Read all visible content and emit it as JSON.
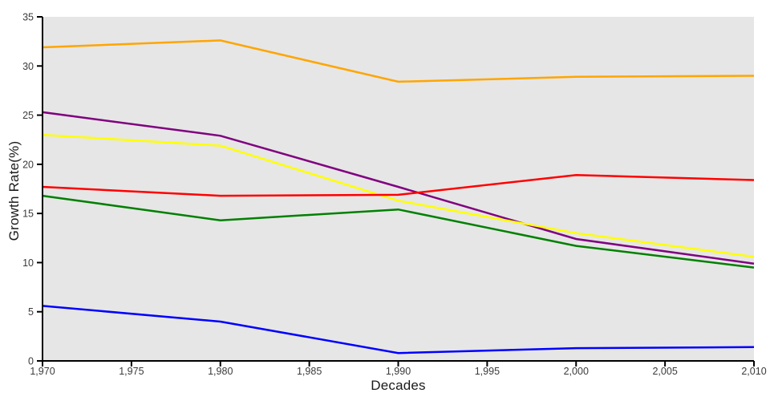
{
  "chart_data": {
    "type": "line",
    "title": "",
    "xlabel": "Decades",
    "ylabel": "Growth Rate(%)",
    "x": [
      1970,
      1980,
      1990,
      2000,
      2010
    ],
    "series": [
      {
        "name": "orange-series",
        "color": "#ffa500",
        "values": [
          31.9,
          32.6,
          28.4,
          28.9,
          29.0
        ]
      },
      {
        "name": "purple-series",
        "color": "#800080",
        "values": [
          25.3,
          22.9,
          17.7,
          12.4,
          9.9
        ]
      },
      {
        "name": "yellow-series",
        "color": "#ffff00",
        "values": [
          23.0,
          21.9,
          16.3,
          13.0,
          10.6
        ]
      },
      {
        "name": "green-series",
        "color": "#008000",
        "values": [
          16.8,
          14.3,
          15.4,
          11.7,
          9.5
        ]
      },
      {
        "name": "blue-series",
        "color": "#0000ff",
        "values": [
          5.6,
          4.0,
          0.8,
          1.3,
          1.4
        ]
      },
      {
        "name": "red-series",
        "color": "#ff0000",
        "values": [
          17.7,
          16.8,
          16.9,
          18.9,
          18.4
        ]
      }
    ],
    "x_ticks": [
      1970,
      1975,
      1980,
      1985,
      1990,
      1995,
      2000,
      2005,
      2010
    ],
    "x_tick_labels": [
      "1,970",
      "1,975",
      "1,980",
      "1,985",
      "1,990",
      "1,995",
      "2,000",
      "2,005",
      "2,010"
    ],
    "y_ticks": [
      0,
      5,
      10,
      15,
      20,
      25,
      30,
      35
    ],
    "y_tick_labels": [
      "0",
      "5",
      "10",
      "15",
      "20",
      "25",
      "30",
      "35"
    ],
    "xlim": [
      1970,
      2010
    ],
    "ylim": [
      0,
      35
    ],
    "grid": false,
    "legend_position": "none",
    "plot_bg_color": "#e6e6e6",
    "axis_color": "#000000",
    "tick_label_color": "#3b3b3b",
    "line_width": 2.5
  }
}
